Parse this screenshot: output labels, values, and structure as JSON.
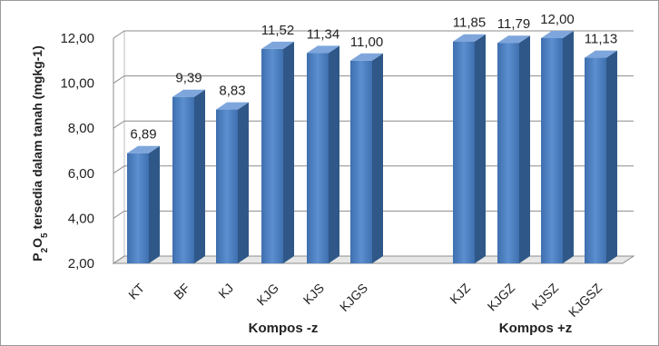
{
  "chart_data": {
    "type": "bar",
    "style": "3d-clustered-column",
    "ylabel_parts": [
      "P",
      "2",
      "O",
      "5",
      " tersedia dalam tanah (mgkg-1)"
    ],
    "ylim": [
      2,
      12
    ],
    "yticks": [
      "2,00",
      "4,00",
      "6,00",
      "8,00",
      "10,00",
      "12,00"
    ],
    "ytick_values": [
      2,
      4,
      6,
      8,
      10,
      12
    ],
    "grid": true,
    "bar_color": "#4F81BD",
    "groups": [
      {
        "label": "Kompos -z",
        "categories": [
          "KT",
          "BF",
          "KJ",
          "KJG",
          "KJS",
          "KJGS"
        ],
        "values": [
          6.89,
          9.39,
          8.83,
          11.52,
          11.34,
          11.0
        ],
        "value_labels": [
          "6,89",
          "9,39",
          "8,83",
          "11,52",
          "11,34",
          "11,00"
        ]
      },
      {
        "label": "Kompos +z",
        "categories": [
          "KJZ",
          "KJGZ",
          "KJSZ",
          "KJGSZ"
        ],
        "values": [
          11.85,
          11.79,
          12.0,
          11.13
        ],
        "value_labels": [
          "11,85",
          "11,79",
          "12,00",
          "11,13"
        ]
      }
    ]
  }
}
